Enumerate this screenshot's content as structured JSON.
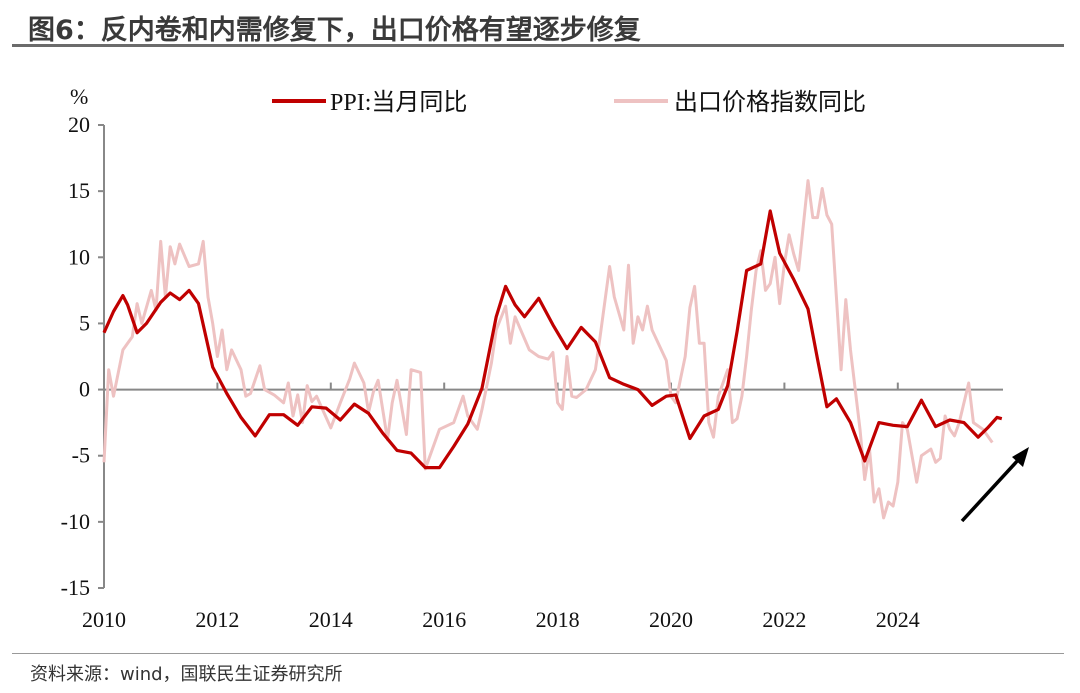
{
  "header": {
    "title": "图6：反内卷和内需修复下，出口价格有望逐步修复"
  },
  "footer": {
    "source": "资料来源：wind，国联民生证券研究所"
  },
  "chart_data": {
    "type": "line",
    "title": "图6：反内卷和内需修复下，出口价格有望逐步修复",
    "ylabel": "%",
    "ylim": [
      -15,
      20
    ],
    "yticks": [
      20,
      15,
      10,
      5,
      0,
      -5,
      -10,
      -15
    ],
    "xlim": [
      "2010-01",
      "2025-11"
    ],
    "xticks": [
      "2010",
      "2012",
      "2014",
      "2016",
      "2018",
      "2020",
      "2022",
      "2024"
    ],
    "legend_placement": "top",
    "grid": false,
    "annotation": "black arrow pointing up-right at end of series",
    "series": [
      {
        "name": "PPI:当月同比",
        "color": "#C00000",
        "points": [
          [
            "2010-01",
            4.3
          ],
          [
            "2010-03",
            5.9
          ],
          [
            "2010-05",
            7.1
          ],
          [
            "2010-06",
            6.4
          ],
          [
            "2010-08",
            4.3
          ],
          [
            "2010-10",
            5.0
          ],
          [
            "2011-01",
            6.6
          ],
          [
            "2011-03",
            7.3
          ],
          [
            "2011-05",
            6.8
          ],
          [
            "2011-07",
            7.5
          ],
          [
            "2011-09",
            6.5
          ],
          [
            "2011-12",
            1.7
          ],
          [
            "2012-03",
            -0.3
          ],
          [
            "2012-06",
            -2.1
          ],
          [
            "2012-09",
            -3.5
          ],
          [
            "2012-12",
            -1.9
          ],
          [
            "2013-03",
            -1.9
          ],
          [
            "2013-06",
            -2.7
          ],
          [
            "2013-09",
            -1.3
          ],
          [
            "2013-12",
            -1.4
          ],
          [
            "2014-03",
            -2.3
          ],
          [
            "2014-06",
            -1.1
          ],
          [
            "2014-09",
            -1.8
          ],
          [
            "2014-12",
            -3.3
          ],
          [
            "2015-03",
            -4.6
          ],
          [
            "2015-06",
            -4.8
          ],
          [
            "2015-09",
            -5.9
          ],
          [
            "2015-12",
            -5.9
          ],
          [
            "2016-03",
            -4.3
          ],
          [
            "2016-06",
            -2.6
          ],
          [
            "2016-09",
            0.1
          ],
          [
            "2016-12",
            5.5
          ],
          [
            "2017-02",
            7.8
          ],
          [
            "2017-04",
            6.4
          ],
          [
            "2017-06",
            5.5
          ],
          [
            "2017-09",
            6.9
          ],
          [
            "2017-12",
            4.9
          ],
          [
            "2018-03",
            3.1
          ],
          [
            "2018-06",
            4.7
          ],
          [
            "2018-09",
            3.6
          ],
          [
            "2018-12",
            0.9
          ],
          [
            "2019-03",
            0.4
          ],
          [
            "2019-06",
            0.0
          ],
          [
            "2019-09",
            -1.2
          ],
          [
            "2019-12",
            -0.5
          ],
          [
            "2020-02",
            -0.4
          ],
          [
            "2020-05",
            -3.7
          ],
          [
            "2020-08",
            -2.0
          ],
          [
            "2020-11",
            -1.5
          ],
          [
            "2021-01",
            0.3
          ],
          [
            "2021-03",
            4.4
          ],
          [
            "2021-05",
            9.0
          ],
          [
            "2021-08",
            9.5
          ],
          [
            "2021-10",
            13.5
          ],
          [
            "2021-12",
            10.3
          ],
          [
            "2022-03",
            8.3
          ],
          [
            "2022-06",
            6.1
          ],
          [
            "2022-08",
            2.3
          ],
          [
            "2022-10",
            -1.3
          ],
          [
            "2022-12",
            -0.7
          ],
          [
            "2023-03",
            -2.5
          ],
          [
            "2023-06",
            -5.4
          ],
          [
            "2023-09",
            -2.5
          ],
          [
            "2023-12",
            -2.7
          ],
          [
            "2024-03",
            -2.8
          ],
          [
            "2024-06",
            -0.8
          ],
          [
            "2024-09",
            -2.8
          ],
          [
            "2024-12",
            -2.3
          ],
          [
            "2025-03",
            -2.5
          ],
          [
            "2025-06",
            -3.6
          ],
          [
            "2025-08",
            -2.9
          ],
          [
            "2025-10",
            -2.1
          ],
          [
            "2025-11",
            -2.2
          ]
        ]
      },
      {
        "name": "出口价格指数同比",
        "color": "#EEC2C2",
        "points": [
          [
            "2010-01",
            -5.5
          ],
          [
            "2010-02",
            1.5
          ],
          [
            "2010-03",
            -0.5
          ],
          [
            "2010-05",
            3.0
          ],
          [
            "2010-07",
            4.0
          ],
          [
            "2010-08",
            6.5
          ],
          [
            "2010-09",
            5.0
          ],
          [
            "2010-11",
            7.5
          ],
          [
            "2010-12",
            6.0
          ],
          [
            "2011-01",
            11.2
          ],
          [
            "2011-02",
            7.0
          ],
          [
            "2011-03",
            10.8
          ],
          [
            "2011-04",
            9.5
          ],
          [
            "2011-05",
            11.0
          ],
          [
            "2011-07",
            9.3
          ],
          [
            "2011-09",
            9.5
          ],
          [
            "2011-10",
            11.2
          ],
          [
            "2011-11",
            7.0
          ],
          [
            "2011-12",
            5.0
          ],
          [
            "2012-01",
            2.5
          ],
          [
            "2012-02",
            4.5
          ],
          [
            "2012-03",
            1.5
          ],
          [
            "2012-04",
            3.0
          ],
          [
            "2012-06",
            1.5
          ],
          [
            "2012-07",
            -0.5
          ],
          [
            "2012-08",
            -0.3
          ],
          [
            "2012-10",
            1.8
          ],
          [
            "2012-11",
            0.0
          ],
          [
            "2013-01",
            -0.4
          ],
          [
            "2013-03",
            -1.0
          ],
          [
            "2013-04",
            0.5
          ],
          [
            "2013-05",
            -2.0
          ],
          [
            "2013-06",
            -0.4
          ],
          [
            "2013-07",
            -2.5
          ],
          [
            "2013-08",
            0.3
          ],
          [
            "2013-09",
            -0.9
          ],
          [
            "2013-10",
            -0.5
          ],
          [
            "2014-01",
            -2.9
          ],
          [
            "2014-03",
            -1.0
          ],
          [
            "2014-05",
            0.8
          ],
          [
            "2014-06",
            2.0
          ],
          [
            "2014-08",
            0.5
          ],
          [
            "2014-09",
            -1.7
          ],
          [
            "2014-10",
            -0.2
          ],
          [
            "2014-11",
            0.7
          ],
          [
            "2015-01",
            -3.8
          ],
          [
            "2015-02",
            -1.0
          ],
          [
            "2015-03",
            0.7
          ],
          [
            "2015-05",
            -3.4
          ],
          [
            "2015-06",
            1.5
          ],
          [
            "2015-08",
            1.3
          ],
          [
            "2015-09",
            -6.0
          ],
          [
            "2015-12",
            -3.0
          ],
          [
            "2016-03",
            -2.5
          ],
          [
            "2016-05",
            -0.5
          ],
          [
            "2016-06",
            -2.0
          ],
          [
            "2016-08",
            -3.0
          ],
          [
            "2016-09",
            -1.5
          ],
          [
            "2016-11",
            2.0
          ],
          [
            "2016-12",
            4.5
          ],
          [
            "2017-02",
            6.3
          ],
          [
            "2017-03",
            3.5
          ],
          [
            "2017-04",
            5.5
          ],
          [
            "2017-07",
            3.0
          ],
          [
            "2017-09",
            2.5
          ],
          [
            "2017-11",
            2.3
          ],
          [
            "2017-12",
            2.8
          ],
          [
            "2018-01",
            -1.0
          ],
          [
            "2018-02",
            -1.5
          ],
          [
            "2018-03",
            2.5
          ],
          [
            "2018-04",
            -0.5
          ],
          [
            "2018-05",
            -0.6
          ],
          [
            "2018-07",
            0.0
          ],
          [
            "2018-09",
            1.5
          ],
          [
            "2018-10",
            4.0
          ],
          [
            "2018-12",
            9.3
          ],
          [
            "2019-01",
            7.0
          ],
          [
            "2019-03",
            4.5
          ],
          [
            "2019-04",
            9.4
          ],
          [
            "2019-05",
            3.5
          ],
          [
            "2019-06",
            5.5
          ],
          [
            "2019-07",
            4.5
          ],
          [
            "2019-08",
            6.3
          ],
          [
            "2019-09",
            4.5
          ],
          [
            "2019-12",
            2.2
          ],
          [
            "2020-01",
            -0.5
          ],
          [
            "2020-02",
            -1.0
          ],
          [
            "2020-03",
            0.8
          ],
          [
            "2020-04",
            2.5
          ],
          [
            "2020-05",
            6.2
          ],
          [
            "2020-06",
            7.8
          ],
          [
            "2020-07",
            3.5
          ],
          [
            "2020-08",
            3.5
          ],
          [
            "2020-09",
            -2.5
          ],
          [
            "2020-10",
            -3.6
          ],
          [
            "2020-11",
            -0.5
          ],
          [
            "2020-12",
            0.5
          ],
          [
            "2021-01",
            1.5
          ],
          [
            "2021-02",
            -2.5
          ],
          [
            "2021-03",
            -2.2
          ],
          [
            "2021-04",
            -0.5
          ],
          [
            "2021-05",
            2.5
          ],
          [
            "2021-06",
            6.0
          ],
          [
            "2021-07",
            9.0
          ],
          [
            "2021-08",
            10.5
          ],
          [
            "2021-09",
            7.5
          ],
          [
            "2021-10",
            8.0
          ],
          [
            "2021-11",
            10.0
          ],
          [
            "2021-12",
            6.5
          ],
          [
            "2022-01",
            9.5
          ],
          [
            "2022-02",
            11.7
          ],
          [
            "2022-03",
            10.2
          ],
          [
            "2022-04",
            9.0
          ],
          [
            "2022-06",
            15.8
          ],
          [
            "2022-07",
            13.0
          ],
          [
            "2022-08",
            13.0
          ],
          [
            "2022-09",
            15.2
          ],
          [
            "2022-10",
            13.2
          ],
          [
            "2022-11",
            12.5
          ],
          [
            "2022-12",
            7.0
          ],
          [
            "2023-01",
            1.5
          ],
          [
            "2023-02",
            6.8
          ],
          [
            "2023-03",
            3.0
          ],
          [
            "2023-05",
            -3.0
          ],
          [
            "2023-06",
            -6.8
          ],
          [
            "2023-07",
            -4.5
          ],
          [
            "2023-08",
            -8.5
          ],
          [
            "2023-09",
            -7.5
          ],
          [
            "2023-10",
            -9.7
          ],
          [
            "2023-11",
            -8.5
          ],
          [
            "2023-12",
            -8.8
          ],
          [
            "2024-01",
            -7.0
          ],
          [
            "2024-02",
            -2.5
          ],
          [
            "2024-03",
            -3.0
          ],
          [
            "2024-05",
            -7.0
          ],
          [
            "2024-06",
            -5.0
          ],
          [
            "2024-08",
            -4.5
          ],
          [
            "2024-09",
            -5.5
          ],
          [
            "2024-10",
            -5.2
          ],
          [
            "2024-11",
            -2.0
          ],
          [
            "2024-12",
            -3.0
          ],
          [
            "2025-01",
            -3.5
          ],
          [
            "2025-02",
            -2.5
          ],
          [
            "2025-04",
            0.5
          ],
          [
            "2025-05",
            -2.5
          ],
          [
            "2025-07",
            -3.0
          ],
          [
            "2025-08",
            -3.5
          ],
          [
            "2025-09",
            -4.0
          ]
        ]
      }
    ]
  }
}
